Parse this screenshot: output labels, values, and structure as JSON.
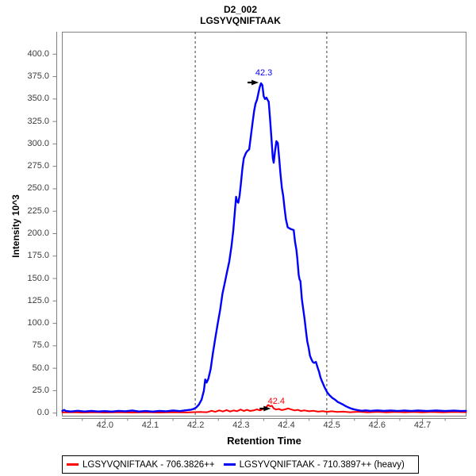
{
  "chart_data": {
    "type": "line",
    "title": "D2_002",
    "subtitle": "LGSYVQNIFTAAK",
    "xlabel": "Retention Time",
    "ylabel": "Intensity 10^3",
    "x_range": [
      41.905,
      42.797
    ],
    "y_range": [
      -3.8,
      425
    ],
    "grid": false,
    "legend_position": "bottom-left",
    "x_ticks": {
      "major": [
        42.0,
        42.1,
        42.2,
        42.3,
        42.4,
        42.5,
        42.6,
        42.7
      ],
      "labels": [
        "42.0",
        "42.1",
        "42.2",
        "42.3",
        "42.4",
        "42.5",
        "42.6",
        "42.7"
      ],
      "minor_step": 0.05
    },
    "y_ticks": {
      "major": [
        0,
        25,
        50,
        75,
        100,
        125,
        150,
        175,
        200,
        225,
        250,
        275,
        300,
        325,
        350,
        375,
        400
      ],
      "labels": [
        "0.0",
        "25.0",
        "50.0",
        "75.0",
        "100.0",
        "125.0",
        "150.0",
        "175.0",
        "200.0",
        "225.0",
        "250.0",
        "275.0",
        "300.0",
        "325.0",
        "350.0",
        "375.0",
        "400.0"
      ]
    },
    "peak_boundaries": [
      42.199,
      42.489
    ],
    "series": [
      {
        "name": "LGSYVQNIFTAAK - 706.3826++",
        "color": "#FF0000",
        "annotation": {
          "label": "42.4",
          "rt": 42.362,
          "intensity": 9
        },
        "points": [
          [
            41.906,
            0.7
          ],
          [
            41.93,
            1.0
          ],
          [
            41.95,
            0.6
          ],
          [
            41.98,
            1.0
          ],
          [
            42.0,
            0.6
          ],
          [
            42.03,
            1.0
          ],
          [
            42.06,
            0.6
          ],
          [
            42.09,
            1.0
          ],
          [
            42.12,
            0.6
          ],
          [
            42.15,
            1.0
          ],
          [
            42.18,
            0.7
          ],
          [
            42.21,
            1.2
          ],
          [
            42.225,
            1.0
          ],
          [
            42.235,
            2.6
          ],
          [
            42.243,
            1.4
          ],
          [
            42.252,
            3.0
          ],
          [
            42.26,
            1.8
          ],
          [
            42.268,
            3.4
          ],
          [
            42.276,
            1.8
          ],
          [
            42.284,
            3.0
          ],
          [
            42.291,
            2.0
          ],
          [
            42.299,
            4.0
          ],
          [
            42.306,
            2.4
          ],
          [
            42.313,
            3.6
          ],
          [
            42.32,
            2.4
          ],
          [
            42.328,
            3.0
          ],
          [
            42.335,
            4.2
          ],
          [
            42.342,
            3.0
          ],
          [
            42.35,
            5.0
          ],
          [
            42.356,
            7.0
          ],
          [
            42.36,
            9.0
          ],
          [
            42.364,
            7.6
          ],
          [
            42.368,
            8.2
          ],
          [
            42.372,
            5.2
          ],
          [
            42.377,
            4.0
          ],
          [
            42.383,
            4.6
          ],
          [
            42.39,
            3.4
          ],
          [
            42.397,
            4.2
          ],
          [
            42.404,
            5.2
          ],
          [
            42.411,
            4.0
          ],
          [
            42.418,
            3.0
          ],
          [
            42.425,
            3.6
          ],
          [
            42.432,
            2.4
          ],
          [
            42.44,
            3.0
          ],
          [
            42.45,
            2.0
          ],
          [
            42.46,
            2.6
          ],
          [
            42.47,
            1.6
          ],
          [
            42.48,
            2.2
          ],
          [
            42.49,
            1.4
          ],
          [
            42.5,
            2.0
          ],
          [
            42.512,
            1.2
          ],
          [
            42.525,
            1.6
          ],
          [
            42.54,
            1.0
          ],
          [
            42.56,
            1.5
          ],
          [
            42.58,
            0.9
          ],
          [
            42.6,
            1.4
          ],
          [
            42.62,
            0.9
          ],
          [
            42.64,
            1.3
          ],
          [
            42.66,
            0.9
          ],
          [
            42.68,
            1.3
          ],
          [
            42.7,
            0.9
          ],
          [
            42.72,
            1.3
          ],
          [
            42.745,
            0.9
          ],
          [
            42.77,
            1.2
          ],
          [
            42.796,
            1.0
          ]
        ]
      },
      {
        "name": "LGSYVQNIFTAAK - 710.3897++ (heavy)",
        "color": "#0000FF",
        "annotation": {
          "label": "42.3",
          "rt": 42.345,
          "intensity": 367.5
        },
        "points": [
          [
            41.906,
            2.5
          ],
          [
            41.91,
            3.5
          ],
          [
            41.914,
            2.3
          ],
          [
            41.925,
            1.8
          ],
          [
            41.94,
            2.6
          ],
          [
            41.955,
            1.8
          ],
          [
            41.97,
            2.4
          ],
          [
            41.985,
            1.8
          ],
          [
            42.0,
            2.2
          ],
          [
            42.015,
            1.7
          ],
          [
            42.03,
            2.5
          ],
          [
            42.045,
            2.0
          ],
          [
            42.06,
            2.8
          ],
          [
            42.075,
            1.8
          ],
          [
            42.09,
            2.3
          ],
          [
            42.105,
            1.7
          ],
          [
            42.12,
            2.4
          ],
          [
            42.135,
            2.0
          ],
          [
            42.15,
            2.8
          ],
          [
            42.165,
            2.2
          ],
          [
            42.18,
            3.2
          ],
          [
            42.19,
            3.8
          ],
          [
            42.196,
            4.8
          ],
          [
            42.201,
            6.2
          ],
          [
            42.207,
            9.5
          ],
          [
            42.213,
            15.0
          ],
          [
            42.218,
            25.0
          ],
          [
            42.221,
            37.5
          ],
          [
            42.224,
            34.0
          ],
          [
            42.228,
            38.5
          ],
          [
            42.233,
            49.0
          ],
          [
            42.238,
            67.0
          ],
          [
            42.243,
            83.0
          ],
          [
            42.248,
            98.0
          ],
          [
            42.254,
            115.0
          ],
          [
            42.259,
            133.0
          ],
          [
            42.264,
            145.0
          ],
          [
            42.269,
            157.0
          ],
          [
            42.274,
            169.0
          ],
          [
            42.279,
            186.0
          ],
          [
            42.283,
            204.0
          ],
          [
            42.286,
            222.0
          ],
          [
            42.289,
            241.0
          ],
          [
            42.291,
            236.0
          ],
          [
            42.294,
            234.5
          ],
          [
            42.297,
            243.0
          ],
          [
            42.3,
            257.0
          ],
          [
            42.303,
            273.0
          ],
          [
            42.306,
            284.0
          ],
          [
            42.311,
            290.0
          ],
          [
            42.314,
            292.0
          ],
          [
            42.318,
            294.0
          ],
          [
            42.322,
            310.0
          ],
          [
            42.326,
            326.0
          ],
          [
            42.329,
            337.0
          ],
          [
            42.332,
            345.0
          ],
          [
            42.335,
            349.0
          ],
          [
            42.338,
            356.0
          ],
          [
            42.341,
            363.0
          ],
          [
            42.344,
            367.5
          ],
          [
            42.347,
            365.5
          ],
          [
            42.35,
            353.0
          ],
          [
            42.353,
            350.0
          ],
          [
            42.356,
            351.5
          ],
          [
            42.359,
            348.5
          ],
          [
            42.361,
            347.0
          ],
          [
            42.364,
            328.0
          ],
          [
            42.367,
            307.0
          ],
          [
            42.37,
            284.0
          ],
          [
            42.372,
            279.0
          ],
          [
            42.375,
            292.0
          ],
          [
            42.378,
            303.0
          ],
          [
            42.381,
            301.0
          ],
          [
            42.384,
            284.0
          ],
          [
            42.387,
            266.0
          ],
          [
            42.39,
            251.0
          ],
          [
            42.393,
            242.0
          ],
          [
            42.396,
            228.0
          ],
          [
            42.399,
            216.0
          ],
          [
            42.403,
            207.0
          ],
          [
            42.41,
            205.0
          ],
          [
            42.416,
            204.0
          ],
          [
            42.419,
            191.0
          ],
          [
            42.422,
            182.0
          ],
          [
            42.424,
            173.0
          ],
          [
            42.427,
            154.0
          ],
          [
            42.429,
            149.0
          ],
          [
            42.431,
            147.0
          ],
          [
            42.434,
            127.0
          ],
          [
            42.437,
            116.0
          ],
          [
            42.44,
            105.0
          ],
          [
            42.443,
            92.0
          ],
          [
            42.446,
            80.0
          ],
          [
            42.449,
            73.0
          ],
          [
            42.452,
            64.0
          ],
          [
            42.455,
            60.0
          ],
          [
            42.458,
            57.0
          ],
          [
            42.461,
            56.0
          ],
          [
            42.465,
            57.0
          ],
          [
            42.468,
            52.0
          ],
          [
            42.472,
            46.0
          ],
          [
            42.475,
            40.0
          ],
          [
            42.478,
            36.0
          ],
          [
            42.484,
            29.0
          ],
          [
            42.49,
            23.0
          ],
          [
            42.495,
            20.0
          ],
          [
            42.501,
            17.0
          ],
          [
            42.507,
            15.0
          ],
          [
            42.513,
            12.5
          ],
          [
            42.519,
            11.0
          ],
          [
            42.525,
            9.5
          ],
          [
            42.53,
            8.0
          ],
          [
            42.536,
            6.5
          ],
          [
            42.542,
            5.2
          ],
          [
            42.55,
            4.0
          ],
          [
            42.558,
            3.2
          ],
          [
            42.566,
            2.6
          ],
          [
            42.575,
            3.0
          ],
          [
            42.585,
            2.4
          ],
          [
            42.6,
            3.0
          ],
          [
            42.615,
            2.4
          ],
          [
            42.63,
            2.9
          ],
          [
            42.645,
            2.3
          ],
          [
            42.66,
            2.8
          ],
          [
            42.675,
            2.3
          ],
          [
            42.69,
            2.8
          ],
          [
            42.71,
            2.3
          ],
          [
            42.73,
            2.8
          ],
          [
            42.75,
            2.3
          ],
          [
            42.77,
            2.7
          ],
          [
            42.785,
            2.3
          ],
          [
            42.796,
            2.5
          ]
        ]
      }
    ]
  },
  "legend": {
    "items": [
      {
        "label": "LGSYVQNIFTAAK - 706.3826++",
        "color": "#FF0000"
      },
      {
        "label": "LGSYVQNIFTAAK - 710.3897++ (heavy)",
        "color": "#0000FF"
      }
    ]
  },
  "colors": {
    "axis": "#808080",
    "tick_label": "#3c3c3c",
    "boundary_line": "#404040",
    "annotation_arrow": "#000000",
    "background": "#FFFFFF"
  }
}
